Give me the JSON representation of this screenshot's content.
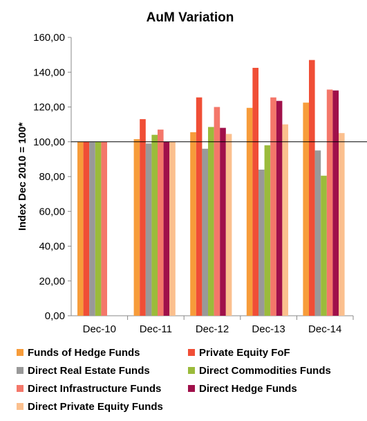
{
  "chart_data": {
    "type": "bar",
    "title": "AuM Variation",
    "xlabel": "",
    "ylabel": "Index Dec 2010 = 100*",
    "ylim": [
      0,
      160
    ],
    "yticks": [
      "0,00",
      "20,00",
      "40,00",
      "60,00",
      "80,00",
      "100,00",
      "120,00",
      "140,00",
      "160,00"
    ],
    "reference_line": 100,
    "grid": false,
    "legend_position": "bottom",
    "categories": [
      "Dec-10",
      "Dec-11",
      "Dec-12",
      "Dec-13",
      "Dec-14"
    ],
    "series": [
      {
        "name": "Funds of Hedge Funds",
        "color": "#F79C3A",
        "values": [
          100,
          101.5,
          105.5,
          119.5,
          122.5
        ]
      },
      {
        "name": "Private Equity FoF",
        "color": "#F04E36",
        "values": [
          100,
          113,
          125.5,
          142.5,
          147
        ]
      },
      {
        "name": "Direct Real Estate Funds",
        "color": "#999999",
        "values": [
          100,
          99,
          96,
          84,
          95
        ]
      },
      {
        "name": "Direct Commodities Funds",
        "color": "#9BBB3B",
        "values": [
          100,
          104,
          108.5,
          98,
          80.5
        ]
      },
      {
        "name": "Direct Infrastructure Funds",
        "color": "#F4776A",
        "values": [
          100,
          107,
          120,
          125.5,
          130
        ]
      },
      {
        "name": "Direct Hedge Funds",
        "color": "#A0104A",
        "values": [
          null,
          100,
          108,
          123.5,
          129.5
        ]
      },
      {
        "name": "Direct Private Equity Funds",
        "color": "#FBC08E",
        "values": [
          null,
          100,
          104.5,
          110,
          105
        ]
      }
    ]
  }
}
